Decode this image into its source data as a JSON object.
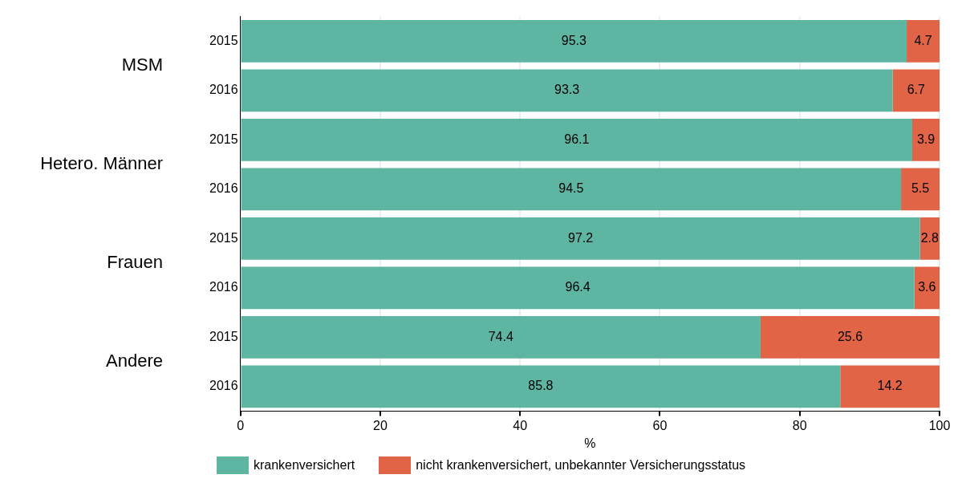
{
  "chart_data": {
    "type": "bar",
    "orientation": "horizontal",
    "stacked": true,
    "categories": [
      "2015",
      "2016",
      "2015",
      "2016",
      "2015",
      "2016",
      "2015",
      "2016"
    ],
    "annotations": [
      "MSM",
      "Hetero. Männer",
      "Frauen",
      "Andere"
    ],
    "series": [
      {
        "name": "krankenversichert",
        "color": "#5db5a2",
        "values": [
          95.3,
          93.3,
          96.1,
          94.5,
          97.2,
          96.4,
          74.4,
          85.8
        ]
      },
      {
        "name": "nicht krankenversichert, unbekannter Versicherungsstatus",
        "color": "#e06445",
        "values": [
          4.7,
          6.7,
          3.9,
          5.5,
          2.8,
          3.6,
          25.6,
          14.2
        ]
      }
    ],
    "xlabel": "%",
    "xlim": [
      0,
      100
    ],
    "xticks": [
      0,
      20,
      40,
      60,
      80,
      100
    ],
    "grid": "x",
    "legend": "bottom",
    "data_labels": true
  }
}
